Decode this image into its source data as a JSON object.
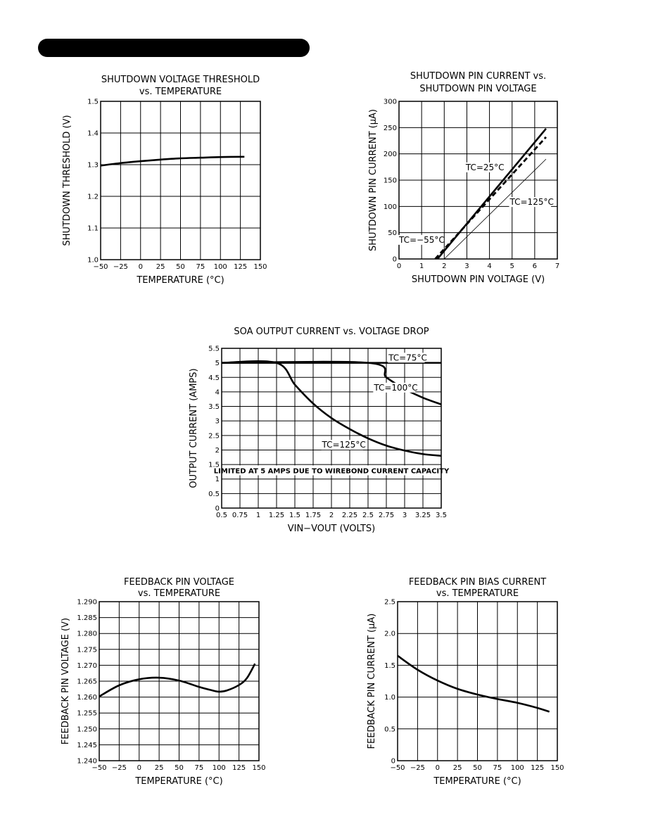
{
  "chart_data": [
    {
      "id": "shutdown_threshold",
      "type": "line",
      "title": [
        "SHUTDOWN VOLTAGE THRESHOLD",
        "vs. TEMPERATURE"
      ],
      "xlabel": "TEMPERATURE (°C)",
      "ylabel": "SHUTDOWN THRESHOLD (V)",
      "xlim": [
        -50,
        150
      ],
      "ylim": [
        1.0,
        1.5
      ],
      "xticks": [
        -50,
        -25,
        0,
        25,
        50,
        75,
        100,
        125,
        150
      ],
      "xtick_labels": [
        "−50",
        "−25",
        "0",
        "25",
        "50",
        "75",
        "100",
        "125",
        "150"
      ],
      "yticks": [
        1.0,
        1.1,
        1.2,
        1.3,
        1.4,
        1.5
      ],
      "ytick_labels": [
        "1.0",
        "1.1",
        "1.2",
        "1.3",
        "1.4",
        "1.5"
      ],
      "grid": true,
      "series": [
        {
          "style": "thick",
          "x": [
            -50,
            -25,
            0,
            25,
            50,
            75,
            100,
            130
          ],
          "y": [
            1.297,
            1.305,
            1.311,
            1.316,
            1.32,
            1.322,
            1.324,
            1.325
          ]
        }
      ],
      "annotations": []
    },
    {
      "id": "shutdown_pin_current",
      "type": "line",
      "title": [
        "SHUTDOWN PIN CURRENT vs.",
        "SHUTDOWN PIN VOLTAGE"
      ],
      "xlabel": "SHUTDOWN PIN VOLTAGE (V)",
      "ylabel": "SHUTDOWN PIN CURRENT (μA)",
      "xlim": [
        0,
        7
      ],
      "ylim": [
        0,
        300
      ],
      "xticks": [
        0,
        1,
        2,
        3,
        4,
        5,
        6,
        7
      ],
      "xtick_labels": [
        "0",
        "1",
        "2",
        "3",
        "4",
        "5",
        "6",
        "7"
      ],
      "yticks": [
        0,
        50,
        100,
        150,
        200,
        250,
        300
      ],
      "ytick_labels": [
        "0",
        "50",
        "100",
        "150",
        "200",
        "250",
        "300"
      ],
      "grid": true,
      "series": [
        {
          "name": "TC=25°C",
          "style": "thick",
          "x": [
            1.7,
            6.5
          ],
          "y": [
            0,
            248
          ]
        },
        {
          "name": "TC=−55°C",
          "style": "dashed",
          "x": [
            1.6,
            6.5
          ],
          "y": [
            0,
            232
          ]
        },
        {
          "name": "TC=125°C",
          "style": "thin",
          "x": [
            2.0,
            6.5
          ],
          "y": [
            0,
            190
          ]
        }
      ],
      "annotations": [
        {
          "text": "TC=25°C",
          "x": 2.95,
          "y": 169
        },
        {
          "text": "TC=125°C",
          "x": 4.9,
          "y": 103
        },
        {
          "text": "TC=−55°C",
          "x": 0.0,
          "y": 31
        }
      ]
    },
    {
      "id": "soa",
      "type": "line",
      "title": [
        "SOA OUTPUT CURRENT vs. VOLTAGE DROP"
      ],
      "xlabel": "VIN−VOUT (VOLTS)",
      "ylabel": "OUTPUT CURRENT (AMPS)",
      "xlim": [
        0.5,
        3.5
      ],
      "ylim": [
        0,
        5.5
      ],
      "xticks": [
        0.5,
        0.75,
        1,
        1.25,
        1.5,
        1.75,
        2,
        2.25,
        2.5,
        2.75,
        3,
        3.25,
        3.5
      ],
      "xtick_labels": [
        "0.5",
        "0.75",
        "1",
        "1.25",
        "1.5",
        "1.75",
        "2",
        "2.25",
        "2.5",
        "2.75",
        "3",
        "3.25",
        "3.5"
      ],
      "yticks": [
        0,
        0.5,
        1,
        1.5,
        2,
        2.5,
        3,
        3.5,
        4,
        4.5,
        5,
        5.5
      ],
      "ytick_labels": [
        "0",
        "0.5",
        "1",
        "1.5",
        "2",
        "2.5",
        "3",
        "3.5",
        "4",
        "4.5",
        "5",
        "5.5"
      ],
      "grid": true,
      "series": [
        {
          "name": "TC=75°C",
          "style": "thick",
          "x": [
            0.5,
            3.5
          ],
          "y": [
            5,
            5
          ]
        },
        {
          "name": "TC=100°C",
          "style": "thick",
          "x": [
            0.5,
            2.5,
            2.75,
            3.0,
            3.25,
            3.5
          ],
          "y": [
            5,
            5,
            4.5,
            4.1,
            3.8,
            3.57
          ]
        },
        {
          "name": "TC=125°C",
          "style": "thick",
          "x": [
            0.5,
            1.25,
            1.5,
            1.75,
            2.0,
            2.25,
            2.5,
            2.75,
            3.0,
            3.25,
            3.5
          ],
          "y": [
            5,
            5,
            4.25,
            3.6,
            3.1,
            2.72,
            2.4,
            2.15,
            1.98,
            1.86,
            1.8
          ]
        }
      ],
      "annotations": [
        {
          "text": "TC=75°C",
          "x": 2.78,
          "y": 5.08
        },
        {
          "text": "TC=100°C",
          "x": 2.58,
          "y": 4.05
        },
        {
          "text": "TC=125°C",
          "x": 1.87,
          "y": 2.08
        }
      ],
      "note": "LIMITED AT 5 AMPS DUE TO WIREBOND CURRENT CAPACITY"
    },
    {
      "id": "feedback_voltage",
      "type": "line",
      "title": [
        "FEEDBACK PIN VOLTAGE",
        "vs. TEMPERATURE"
      ],
      "xlabel": "TEMPERATURE (°C)",
      "ylabel": "FEEDBACK PIN VOLTAGE (V)",
      "xlim": [
        -50,
        150
      ],
      "ylim": [
        1.24,
        1.29
      ],
      "xticks": [
        -50,
        -25,
        0,
        25,
        50,
        75,
        100,
        125,
        150
      ],
      "xtick_labels": [
        "−50",
        "−25",
        "0",
        "25",
        "50",
        "75",
        "100",
        "125",
        "150"
      ],
      "yticks": [
        1.24,
        1.245,
        1.25,
        1.255,
        1.26,
        1.265,
        1.27,
        1.275,
        1.28,
        1.285,
        1.29
      ],
      "ytick_labels": [
        "1.240",
        "1.245",
        "1.250",
        "1.255",
        "1.260",
        "1.265",
        "1.270",
        "1.275",
        "1.280",
        "1.285",
        "1.290"
      ],
      "grid": true,
      "series": [
        {
          "style": "thick",
          "x": [
            -50,
            -25,
            0,
            25,
            50,
            75,
            90,
            100,
            110,
            125,
            135,
            145
          ],
          "y": [
            1.2602,
            1.2637,
            1.2656,
            1.2661,
            1.2652,
            1.2632,
            1.2622,
            1.2617,
            1.2621,
            1.2638,
            1.266,
            1.2705
          ]
        }
      ],
      "annotations": []
    },
    {
      "id": "feedback_bias",
      "type": "line",
      "title": [
        "FEEDBACK PIN BIAS CURRENT",
        "vs. TEMPERATURE"
      ],
      "xlabel": "TEMPERATURE (°C)",
      "ylabel": "FEEDBACK PIN CURRENT (μA)",
      "xlim": [
        -50,
        150
      ],
      "ylim": [
        0,
        2.5
      ],
      "xticks": [
        -50,
        -25,
        0,
        25,
        50,
        75,
        100,
        125,
        150
      ],
      "xtick_labels": [
        "−50",
        "−25",
        "0",
        "25",
        "50",
        "75",
        "100",
        "125",
        "150"
      ],
      "yticks": [
        0,
        0.5,
        1.0,
        1.5,
        2.0,
        2.5
      ],
      "ytick_labels": [
        "0",
        "0.5",
        "1.0",
        "1.5",
        "2.0",
        "2.5"
      ],
      "grid": true,
      "series": [
        {
          "style": "thick",
          "x": [
            -50,
            -25,
            0,
            25,
            50,
            75,
            100,
            125,
            140
          ],
          "y": [
            1.65,
            1.43,
            1.26,
            1.13,
            1.04,
            0.97,
            0.91,
            0.83,
            0.77
          ]
        }
      ],
      "annotations": []
    }
  ]
}
